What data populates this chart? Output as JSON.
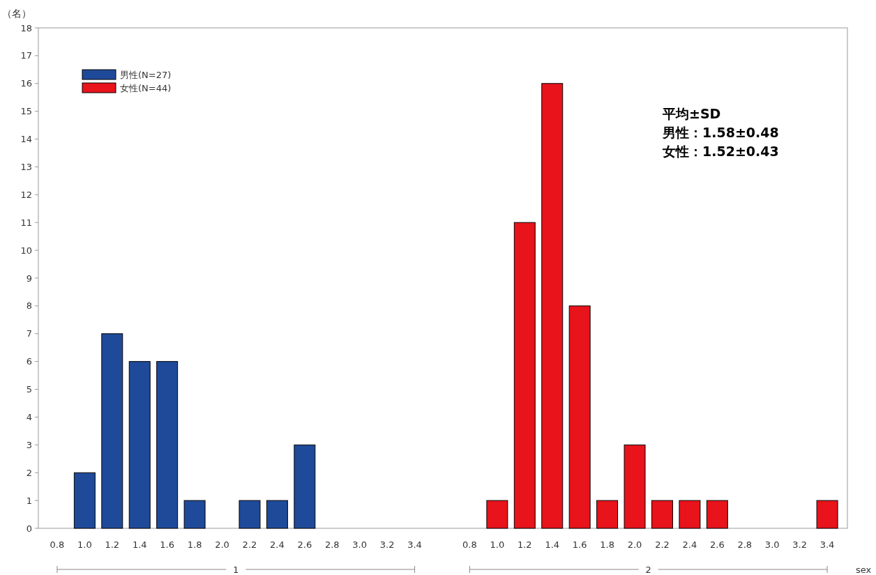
{
  "chart_data": {
    "type": "bar",
    "ylabel": "（名）",
    "xlabel": "sex",
    "categories": [
      "0.8",
      "1.0",
      "1.2",
      "1.4",
      "1.6",
      "1.8",
      "2.0",
      "2.2",
      "2.4",
      "2.6",
      "2.8",
      "3.0",
      "3.2",
      "3.4",
      null,
      "0.8",
      "1.0",
      "1.2",
      "1.4",
      "1.6",
      "1.8",
      "2.0",
      "2.2",
      "2.4",
      "2.6",
      "2.8",
      "3.0",
      "3.2",
      "3.4"
    ],
    "series": [
      {
        "name": "男性(N=27)",
        "color": "#1f4a9a",
        "values": [
          null,
          2,
          7,
          6,
          6,
          1,
          null,
          1,
          1,
          3,
          null,
          null,
          null,
          null,
          null,
          null,
          null,
          null,
          null,
          null,
          null,
          null,
          null,
          null,
          null,
          null,
          null,
          null,
          null
        ]
      },
      {
        "name": "女性(N=44)",
        "color": "#e8131b",
        "values": [
          null,
          null,
          null,
          null,
          null,
          null,
          null,
          null,
          null,
          null,
          null,
          null,
          null,
          null,
          null,
          null,
          1,
          11,
          16,
          8,
          1,
          3,
          1,
          1,
          1,
          null,
          null,
          null,
          1
        ]
      }
    ],
    "ylim": [
      0,
      18
    ],
    "yticks": [
      0,
      1,
      2,
      3,
      4,
      5,
      6,
      7,
      8,
      9,
      10,
      11,
      12,
      13,
      14,
      15,
      16,
      17,
      18
    ],
    "legend": "top left",
    "grid": false,
    "annotations": [
      "平均±SD",
      "男性：1.58±0.48",
      "女性：1.52±0.43",
      "1",
      "2"
    ]
  }
}
